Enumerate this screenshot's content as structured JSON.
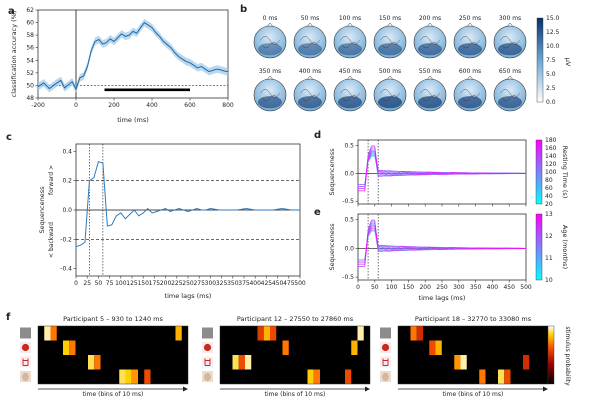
{
  "panels": {
    "a": "a",
    "b": "b",
    "c": "c",
    "d": "d",
    "e": "e",
    "f": "f"
  },
  "chart_data": [
    {
      "id": "a",
      "type": "line",
      "xlabel": "time (ms)",
      "ylabel": "classification accuracy (%)",
      "xlim": [
        -200,
        800
      ],
      "ylim": [
        48,
        62
      ],
      "xticks": [
        -200,
        0,
        200,
        400,
        600,
        800
      ],
      "yticks": [
        48,
        50,
        52,
        54,
        56,
        58,
        60,
        62
      ],
      "chance_level": 50,
      "significance_bar": [
        150,
        600
      ],
      "x": [
        -200,
        -170,
        -140,
        -110,
        -80,
        -60,
        -40,
        -20,
        0,
        20,
        40,
        60,
        80,
        100,
        120,
        140,
        160,
        180,
        200,
        220,
        240,
        260,
        280,
        300,
        320,
        340,
        360,
        380,
        400,
        420,
        440,
        460,
        480,
        500,
        520,
        540,
        560,
        580,
        600,
        620,
        640,
        660,
        680,
        700,
        720,
        740,
        760,
        780,
        800
      ],
      "y": [
        49.8,
        50.4,
        49.5,
        50.2,
        50.8,
        49.6,
        50.1,
        50.6,
        49.4,
        51.2,
        51.5,
        53.0,
        55.5,
        57.0,
        57.3,
        56.6,
        56.8,
        57.4,
        57.0,
        57.6,
        58.2,
        57.8,
        58.0,
        58.6,
        58.3,
        59.2,
        60.0,
        59.6,
        59.2,
        58.4,
        57.8,
        57.0,
        56.5,
        56.0,
        55.2,
        54.6,
        54.2,
        53.8,
        53.6,
        53.2,
        52.8,
        53.0,
        52.6,
        52.2,
        52.4,
        52.6,
        52.5,
        52.3,
        52.2
      ]
    },
    {
      "id": "b",
      "type": "heatmap",
      "times": [
        "0 ms",
        "50 ms",
        "100 ms",
        "150 ms",
        "200 ms",
        "250 ms",
        "300 ms",
        "350 ms",
        "400 ms",
        "450 ms",
        "500 ms",
        "550 ms",
        "600 ms",
        "650 ms"
      ],
      "intensity": [
        0.25,
        0.3,
        0.35,
        0.4,
        0.45,
        0.5,
        0.55,
        0.5,
        0.55,
        0.6,
        0.7,
        0.65,
        0.6,
        0.55
      ],
      "colorbar_label": "µV",
      "colorbar_range": [
        0,
        15
      ],
      "colorbar_ticks": [
        "15.0",
        "12.5",
        "10.0",
        "7.5",
        "5.0",
        "2.5",
        "0.0"
      ]
    },
    {
      "id": "c",
      "type": "line",
      "xlabel": "time lags (ms)",
      "ylabel": "Sequenceness",
      "ylabel_top": "forward >",
      "ylabel_bottom": "< backward",
      "xlim": [
        0,
        500
      ],
      "ylim": [
        -0.45,
        0.45
      ],
      "xticks": [
        0,
        25,
        50,
        75,
        100,
        125,
        150,
        175,
        200,
        225,
        250,
        275,
        300,
        325,
        350,
        375,
        400,
        425,
        450,
        475,
        500
      ],
      "yticks": [
        -0.4,
        -0.2,
        0,
        0.2,
        0.4
      ],
      "threshold": 0.2,
      "markers": [
        30,
        60
      ],
      "x": [
        0,
        10,
        20,
        30,
        40,
        50,
        60,
        70,
        80,
        90,
        100,
        110,
        120,
        130,
        140,
        150,
        160,
        170,
        180,
        190,
        200,
        210,
        220,
        230,
        240,
        250,
        260,
        270,
        280,
        290,
        300,
        320,
        340,
        360,
        380,
        400,
        420,
        440,
        460,
        480,
        500
      ],
      "y": [
        -0.25,
        -0.24,
        -0.22,
        0.2,
        0.22,
        0.33,
        0.32,
        -0.11,
        -0.1,
        -0.04,
        -0.02,
        -0.06,
        -0.03,
        0.0,
        -0.04,
        -0.02,
        0.01,
        -0.02,
        -0.01,
        0.0,
        0.01,
        -0.01,
        0.0,
        0.01,
        0.0,
        -0.01,
        0.0,
        0.01,
        0.0,
        0.0,
        0.01,
        0.0,
        0.0,
        0.0,
        0.01,
        0.0,
        0.0,
        0.0,
        0.01,
        0.0,
        0.0
      ]
    },
    {
      "id": "d",
      "type": "line",
      "xlabel": "time lags (ms)",
      "ylabel": "Sequenceness",
      "xlim": [
        0,
        500
      ],
      "ylim": [
        -0.55,
        0.6
      ],
      "xticks": [
        0,
        50,
        100,
        150,
        200,
        250,
        300,
        350,
        400,
        450,
        500
      ],
      "yticks": [
        -0.5,
        0.0,
        0.5
      ],
      "colorbar_label": "Resting Time (s)",
      "colorbar_ticks": [
        "180",
        "160",
        "140",
        "120",
        "100",
        "80",
        "60",
        "40",
        "20"
      ],
      "series": [
        {
          "name": "20"
        },
        {
          "name": "60"
        },
        {
          "name": "100"
        },
        {
          "name": "140"
        },
        {
          "name": "180"
        }
      ]
    },
    {
      "id": "e",
      "type": "line",
      "xlabel": "time lags (ms)",
      "ylabel": "Sequenceness",
      "xlim": [
        0,
        500
      ],
      "ylim": [
        -0.55,
        0.6
      ],
      "xticks": [
        0,
        50,
        100,
        150,
        200,
        250,
        300,
        350,
        400,
        450,
        500
      ],
      "yticks": [
        -0.5,
        0.0,
        0.5
      ],
      "colorbar_label": "Age (months)",
      "colorbar_ticks": [
        "13",
        "12",
        "11",
        "10"
      ],
      "series": [
        {
          "name": "10"
        },
        {
          "name": "11"
        },
        {
          "name": "12"
        },
        {
          "name": "13"
        }
      ]
    },
    {
      "id": "f",
      "type": "heatmap",
      "colorbar_label": "stimulus probability",
      "xlabel": "time (bins of 10 ms)",
      "participants": [
        {
          "title": "Participant 5 – 930 to 1240 ms",
          "events": [
            [
              0,
              1,
              0.95
            ],
            [
              0,
              2,
              0.7
            ],
            [
              1,
              4,
              0.85
            ],
            [
              1,
              5,
              0.7
            ],
            [
              2,
              8,
              0.9
            ],
            [
              2,
              9,
              0.7
            ],
            [
              3,
              13,
              0.9
            ],
            [
              3,
              14,
              0.85
            ],
            [
              3,
              15,
              0.75
            ],
            [
              3,
              17,
              0.6
            ],
            [
              0,
              22,
              0.8
            ]
          ]
        },
        {
          "title": "Participant 12 – 27550 to 27860 ms",
          "events": [
            [
              0,
              6,
              0.55
            ],
            [
              0,
              7,
              0.8
            ],
            [
              0,
              8,
              0.6
            ],
            [
              1,
              10,
              0.7
            ],
            [
              2,
              2,
              0.9
            ],
            [
              2,
              3,
              0.6
            ],
            [
              2,
              4,
              0.95
            ],
            [
              3,
              14,
              0.85
            ],
            [
              3,
              15,
              0.7
            ],
            [
              3,
              20,
              0.6
            ],
            [
              1,
              21,
              0.8
            ],
            [
              0,
              22,
              0.95
            ]
          ]
        },
        {
          "title": "Participant 18 – 32770 to 33080 ms",
          "events": [
            [
              0,
              2,
              0.7
            ],
            [
              0,
              3,
              0.5
            ],
            [
              1,
              5,
              0.6
            ],
            [
              1,
              6,
              0.8
            ],
            [
              2,
              9,
              0.75
            ],
            [
              2,
              10,
              0.95
            ],
            [
              3,
              13,
              0.7
            ],
            [
              3,
              16,
              0.9
            ],
            [
              3,
              17,
              0.6
            ],
            [
              2,
              20,
              0.5
            ]
          ]
        }
      ]
    }
  ]
}
